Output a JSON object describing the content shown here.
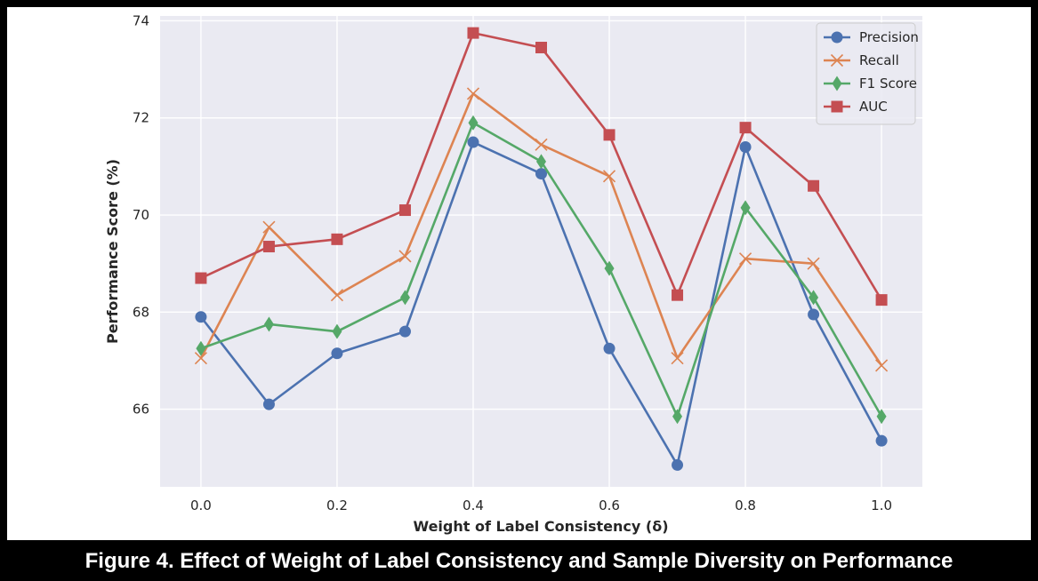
{
  "figure": {
    "caption": "Figure 4. Effect of Weight of Label Consistency and Sample Diversity on Performance"
  },
  "chart_data": {
    "type": "line",
    "title": "",
    "xlabel": "Weight of Label Consistency (δ)",
    "ylabel": "Performance Score (%)",
    "x": [
      0.0,
      0.1,
      0.2,
      0.3,
      0.4,
      0.5,
      0.6,
      0.7,
      0.8,
      0.9,
      1.0
    ],
    "xticks": [
      "0.0",
      "0.2",
      "0.4",
      "0.6",
      "0.8",
      "1.0"
    ],
    "yticks": [
      "66",
      "68",
      "70",
      "72",
      "74"
    ],
    "xlim": [
      -0.06,
      1.06
    ],
    "ylim": [
      64.4,
      74.1
    ],
    "grid": true,
    "legend_position": "top-right",
    "series": [
      {
        "name": "Precision",
        "marker": "circle",
        "color": "#4c72b0",
        "values": [
          67.9,
          66.1,
          67.15,
          67.6,
          71.5,
          70.85,
          67.25,
          64.85,
          71.4,
          67.95,
          65.35
        ]
      },
      {
        "name": "Recall",
        "marker": "x",
        "color": "#dd8452",
        "values": [
          67.05,
          69.75,
          68.35,
          69.15,
          72.5,
          71.45,
          70.8,
          67.05,
          69.1,
          69.0,
          66.9
        ]
      },
      {
        "name": "F1 Score",
        "marker": "diamond",
        "color": "#55a868",
        "values": [
          67.25,
          67.75,
          67.6,
          68.3,
          71.9,
          71.1,
          68.9,
          65.85,
          70.15,
          68.3,
          65.85
        ]
      },
      {
        "name": "AUC",
        "marker": "square",
        "color": "#c44e52",
        "values": [
          68.7,
          69.35,
          69.5,
          70.1,
          73.75,
          73.45,
          71.65,
          68.35,
          71.8,
          70.6,
          68.25
        ]
      }
    ]
  }
}
